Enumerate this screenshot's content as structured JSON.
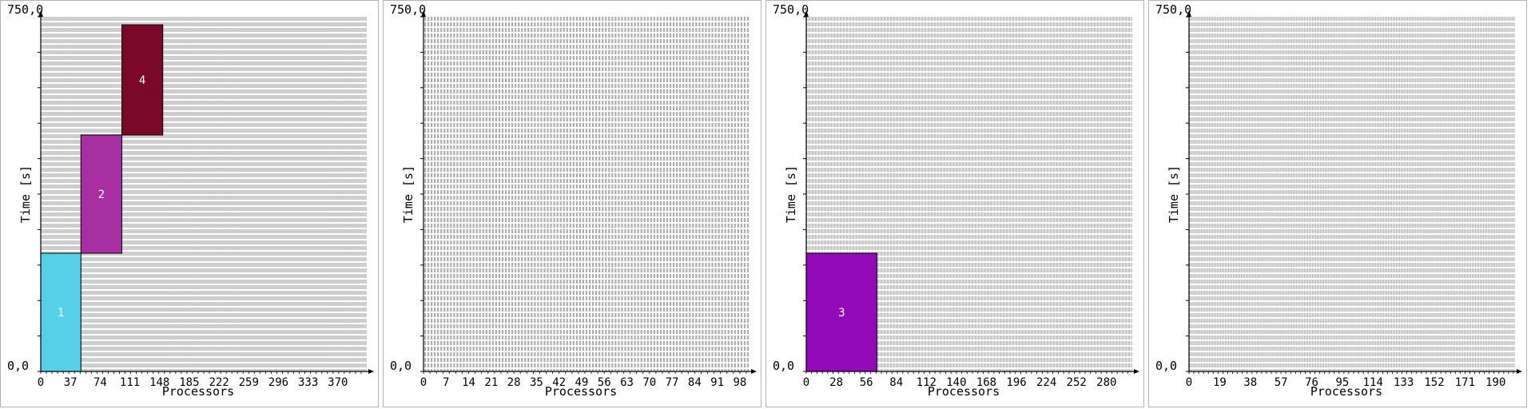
{
  "chart_data": [
    {
      "type": "gantt",
      "ylabel": "Time [s]",
      "xlabel": "Processors",
      "ylim": [
        0,
        750
      ],
      "ytop_label": "750,0",
      "ybot_label": "0,0",
      "processors": 406,
      "xticks": [
        0,
        37,
        74,
        111,
        148,
        185,
        222,
        259,
        296,
        333,
        370
      ],
      "jobs": [
        {
          "id": "1",
          "proc_start": 0,
          "proc_end": 50,
          "t_start": 0,
          "t_end": 250,
          "color": "#56cfe9"
        },
        {
          "id": "2",
          "proc_start": 50,
          "proc_end": 101,
          "t_start": 250,
          "t_end": 500,
          "color": "#a82fa2"
        },
        {
          "id": "4",
          "proc_start": 101,
          "proc_end": 152,
          "t_start": 500,
          "t_end": 733,
          "color": "#7b0829"
        }
      ]
    },
    {
      "type": "gantt",
      "ylabel": "Time [s]",
      "xlabel": "Processors",
      "ylim": [
        0,
        750
      ],
      "ytop_label": "750,0",
      "ybot_label": "0,0",
      "processors": 101,
      "xticks": [
        0,
        7,
        14,
        21,
        28,
        35,
        42,
        49,
        56,
        63,
        70,
        77,
        84,
        91,
        98
      ],
      "jobs": []
    },
    {
      "type": "gantt",
      "ylabel": "Time [s]",
      "xlabel": "Processors",
      "ylim": [
        0,
        750
      ],
      "ytop_label": "750,0",
      "ybot_label": "0,0",
      "processors": 304,
      "xticks": [
        0,
        28,
        56,
        84,
        112,
        140,
        168,
        196,
        224,
        252,
        280
      ],
      "jobs": [
        {
          "id": "3",
          "proc_start": 0,
          "proc_end": 66,
          "t_start": 0,
          "t_end": 250,
          "color": "#930ab8"
        }
      ]
    },
    {
      "type": "gantt",
      "ylabel": "Time [s]",
      "xlabel": "Processors",
      "ylim": [
        0,
        750
      ],
      "ytop_label": "750,0",
      "ybot_label": "0,0",
      "processors": 202,
      "xticks": [
        0,
        19,
        38,
        57,
        76,
        95,
        114,
        133,
        152,
        171,
        190
      ],
      "jobs": []
    }
  ]
}
